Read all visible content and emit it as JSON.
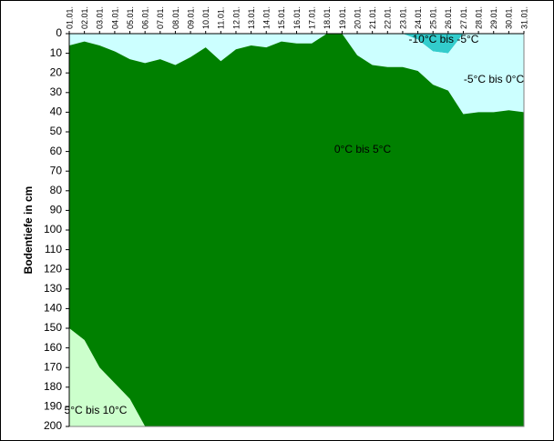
{
  "chart_data": {
    "type": "stacked_area",
    "y_label": "Bodentiefe in cm",
    "categories": [
      "01.01.",
      "02.01.",
      "03.01.",
      "04.01.",
      "05.01.",
      "06.01.",
      "07.01.",
      "08.01.",
      "09.01.",
      "10.01.",
      "11.01.",
      "12.01.",
      "13.01.",
      "14.01.",
      "15.01.",
      "16.01.",
      "17.01.",
      "18.01.",
      "19.01.",
      "20.01.",
      "21.01.",
      "22.01.",
      "23.01.",
      "24.01.",
      "25.01.",
      "26.01.",
      "27.01.",
      "28.01.",
      "29.01.",
      "30.01.",
      "31.01."
    ],
    "ylim": [
      0,
      200
    ],
    "y_reversed": true,
    "yticks": [
      0,
      10,
      20,
      30,
      40,
      50,
      60,
      70,
      80,
      90,
      100,
      110,
      120,
      130,
      140,
      150,
      160,
      170,
      180,
      190,
      200
    ],
    "series": [
      {
        "name": "-10°C bis -5°C",
        "color": "#33cccc",
        "values": [
          0,
          0,
          0,
          0,
          0,
          0,
          0,
          0,
          0,
          0,
          0,
          0,
          0,
          0,
          0,
          0,
          0,
          0,
          0,
          0,
          0,
          0,
          0,
          3,
          9,
          10,
          0,
          0,
          0,
          0,
          0
        ]
      },
      {
        "name": "-5°C bis 0°C",
        "color": "#ccffff",
        "values": [
          6,
          4,
          6,
          9,
          13,
          15,
          13,
          16,
          12,
          7,
          14,
          8,
          6,
          7,
          4,
          5,
          5,
          0,
          0,
          11,
          16,
          17,
          17,
          16,
          17,
          19,
          41,
          40,
          40,
          39,
          40
        ]
      },
      {
        "name": "0°C bis 5°C",
        "color": "#008000",
        "values": [
          144,
          152,
          164,
          169,
          173,
          185,
          187,
          184,
          188,
          193,
          186,
          192,
          194,
          193,
          196,
          195,
          195,
          200,
          200,
          189,
          184,
          183,
          183,
          181,
          174,
          171,
          159,
          160,
          160,
          161,
          160
        ]
      },
      {
        "name": "5°C bis 10°C",
        "color": "#ccffcc",
        "values": [
          50,
          44,
          30,
          22,
          14,
          0,
          0,
          0,
          0,
          0,
          0,
          0,
          0,
          0,
          0,
          0,
          0,
          0,
          0,
          0,
          0,
          0,
          0,
          0,
          0,
          0,
          0,
          0,
          0,
          0,
          0
        ]
      }
    ]
  }
}
